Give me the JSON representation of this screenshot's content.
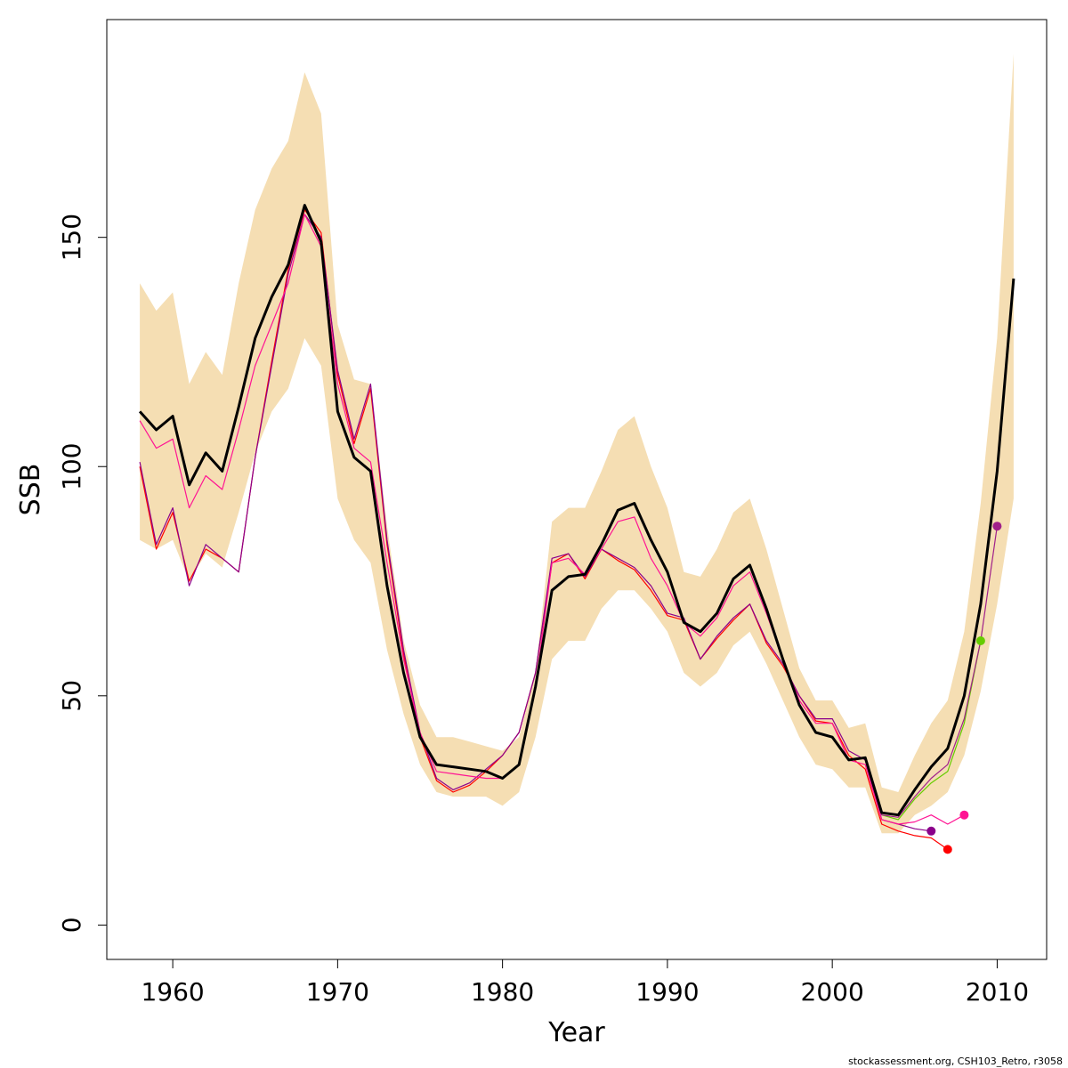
{
  "chart_data": {
    "type": "line",
    "xlabel": "Year",
    "ylabel": "SSB",
    "xlim": [
      1956,
      2013
    ],
    "ylim": [
      -7.5,
      197.5
    ],
    "x_ticks": [
      1960,
      1970,
      1980,
      1990,
      2000,
      2010
    ],
    "y_ticks": [
      0,
      50,
      100,
      150
    ],
    "grid": false,
    "legend": "none",
    "footer": "stockassessment.org, CSH103_Retro, r3058",
    "colors": {
      "band": "#F5DEB3",
      "main": "#000000",
      "peel1": "#A0208A",
      "peel2": "#8B008B",
      "peel3": "#FF1493",
      "peel4": "#FF0000",
      "peel5": "#66CC00"
    },
    "years": [
      1958,
      1959,
      1960,
      1961,
      1962,
      1963,
      1964,
      1965,
      1966,
      1967,
      1968,
      1969,
      1970,
      1971,
      1972,
      1973,
      1974,
      1975,
      1976,
      1977,
      1978,
      1979,
      1980,
      1981,
      1982,
      1983,
      1984,
      1985,
      1986,
      1987,
      1988,
      1989,
      1990,
      1991,
      1992,
      1993,
      1994,
      1995,
      1996,
      1997,
      1998,
      1999,
      2000,
      2001,
      2002,
      2003,
      2004,
      2005,
      2006,
      2007,
      2008,
      2009,
      2010,
      2011
    ],
    "ci_upper": [
      140,
      134,
      138,
      118,
      125,
      120,
      140,
      156,
      165,
      171,
      186,
      177,
      131,
      119,
      118,
      87,
      62,
      48,
      41,
      41,
      40,
      39,
      38,
      41,
      55,
      88,
      91,
      91,
      99,
      108,
      111,
      100,
      91,
      77,
      76,
      82,
      90,
      93,
      82,
      69,
      56,
      49,
      49,
      43,
      44,
      30,
      29,
      37,
      44,
      49,
      64,
      92,
      128,
      190
    ],
    "ci_lower": [
      84,
      82,
      84,
      75,
      81,
      78,
      90,
      103,
      112,
      117,
      128,
      122,
      93,
      84,
      79,
      60,
      46,
      35,
      29,
      28,
      28,
      28,
      26,
      29,
      41,
      58,
      62,
      62,
      69,
      73,
      73,
      69,
      64,
      55,
      52,
      55,
      61,
      64,
      57,
      49,
      41,
      35,
      34,
      30,
      30,
      20,
      20,
      24,
      26,
      29,
      37,
      51,
      70,
      93
    ],
    "series": [
      {
        "color_key": "main",
        "values": [
          112,
          108,
          111,
          96,
          103,
          99,
          113,
          128,
          137,
          144,
          157,
          149,
          112,
          102,
          99,
          74,
          55,
          41,
          35,
          34.5,
          34,
          33.5,
          32,
          35,
          52,
          73,
          76,
          76.5,
          83,
          90.5,
          92,
          84,
          77,
          66,
          64,
          68,
          75.5,
          78.5,
          69,
          58,
          48,
          42,
          41,
          36,
          36.5,
          24.5,
          24,
          29.5,
          34.5,
          38.5,
          50,
          70,
          99,
          141
        ]
      },
      {
        "color_key": "peel1",
        "values": [
          112,
          108,
          111,
          96,
          103,
          99,
          113,
          128,
          137,
          144,
          157,
          149,
          112,
          102,
          99,
          74,
          55,
          41,
          35,
          34.5,
          34,
          33.5,
          32,
          35,
          52,
          73,
          76,
          76.5,
          83,
          90.5,
          92,
          84,
          77,
          66,
          64,
          68,
          75.5,
          78.5,
          69,
          58,
          48,
          42,
          41,
          36,
          36.5,
          24,
          23.5,
          28,
          32,
          35,
          45,
          62,
          87
        ]
      },
      {
        "color_key": "peel5",
        "values": [
          112,
          108,
          111,
          96,
          103,
          99,
          113,
          128,
          137,
          144,
          157,
          149,
          112,
          102,
          99,
          74,
          55,
          41,
          35,
          34.5,
          34,
          33.5,
          32,
          35,
          52,
          73,
          76,
          76.5,
          83,
          90.5,
          92,
          84,
          77,
          66,
          64,
          68,
          75.5,
          78.5,
          69,
          58,
          48,
          42,
          41,
          36,
          36.5,
          24,
          23,
          27.5,
          31,
          33.5,
          44,
          62
        ]
      },
      {
        "color_key": "peel3",
        "values": [
          110,
          104,
          106,
          91,
          98,
          95,
          108,
          122,
          131,
          140,
          155,
          148,
          118,
          104,
          101,
          79,
          58,
          42,
          33.5,
          33,
          32.5,
          32,
          32,
          35,
          52,
          79,
          80,
          76.5,
          82,
          88,
          89,
          80,
          74,
          66,
          63,
          67,
          74,
          77,
          68,
          58,
          49,
          44,
          44,
          36,
          35,
          23,
          22,
          22.5,
          24,
          22,
          24
        ]
      },
      {
        "color_key": "peel2",
        "values": [
          101,
          83,
          91,
          74,
          83,
          80,
          77,
          102,
          122,
          142,
          155,
          150,
          121,
          106,
          118,
          84,
          60,
          42,
          32,
          29.5,
          31,
          34,
          37,
          42,
          55,
          80,
          81,
          76,
          82,
          80,
          78,
          74,
          68,
          67,
          58,
          63,
          67,
          70,
          62,
          57,
          50,
          45,
          45,
          38,
          36,
          23,
          22,
          21,
          20.5
        ]
      },
      {
        "color_key": "peel4",
        "values": [
          100,
          82,
          90,
          75,
          82,
          80,
          77,
          102,
          123,
          143,
          156,
          151,
          120,
          105,
          117,
          83,
          59,
          41,
          31.5,
          29,
          30.5,
          33.5,
          37,
          42,
          55,
          79,
          81,
          75.5,
          82,
          79.5,
          77.5,
          73,
          67.5,
          66.5,
          58,
          62.5,
          66.5,
          70,
          61.5,
          56.5,
          50,
          44.5,
          44,
          37,
          34,
          22,
          20.5,
          19.5,
          19,
          16.5
        ]
      }
    ]
  }
}
